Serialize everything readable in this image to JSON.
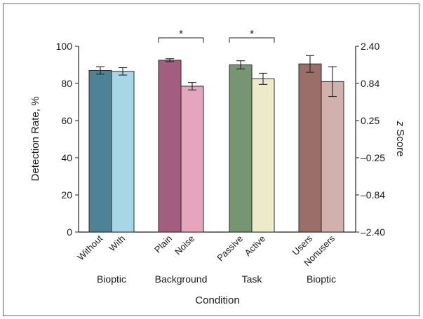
{
  "colors": {
    "bioptic_without": "#4e8296",
    "bioptic_with": "#a7d6e5",
    "plain": "#a45e80",
    "noise": "#e3a6bc",
    "passive": "#759670",
    "active": "#eceacb",
    "users": "#9b6e68",
    "nonusers": "#d0b1ad",
    "axis": "#222222"
  },
  "chart_data": {
    "type": "bar",
    "title": "",
    "xlabel": "Condition",
    "ylabel": "Detection Rate, %",
    "ylabel_right_prefix": "z",
    "ylabel_right_suffix": "Score",
    "ylim": [
      0,
      100
    ],
    "y_ticks": [
      "0",
      "20",
      "40",
      "60",
      "80",
      "100"
    ],
    "y_right_ticks": [
      "–2.40",
      "–0.84",
      "–0.25",
      "0.25",
      "0.84",
      "2.40"
    ],
    "groups": [
      {
        "name": "Bioptic",
        "bars": [
          {
            "label": "Without",
            "value": 87,
            "err": 2,
            "color_key": "bioptic_without"
          },
          {
            "label": "With",
            "value": 86.5,
            "err": 2,
            "color_key": "bioptic_with"
          }
        ]
      },
      {
        "name": "Background",
        "bars": [
          {
            "label": "Plain",
            "value": 92.5,
            "err": 0.8,
            "color_key": "plain"
          },
          {
            "label": "Noise",
            "value": 78.5,
            "err": 2,
            "color_key": "noise"
          }
        ],
        "significance": "*"
      },
      {
        "name": "Task",
        "bars": [
          {
            "label": "Passive",
            "value": 90,
            "err": 2.2,
            "color_key": "passive"
          },
          {
            "label": "Active",
            "value": 82.5,
            "err": 3,
            "color_key": "active"
          }
        ],
        "significance": "*"
      },
      {
        "name": "Bioptic",
        "bars": [
          {
            "label": "Users",
            "value": 90.5,
            "err": 4.5,
            "color_key": "users"
          },
          {
            "label": "Nonusers",
            "value": 81,
            "err": 8,
            "color_key": "nonusers"
          }
        ]
      }
    ]
  }
}
